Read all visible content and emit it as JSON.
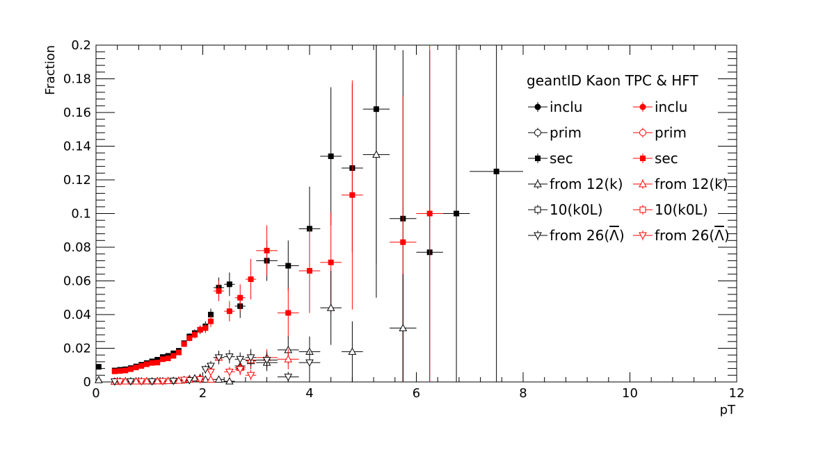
{
  "chart_data": {
    "type": "scatter",
    "xlabel": "pT",
    "ylabel": "Fraction",
    "xlim": [
      0,
      12
    ],
    "ylim": [
      0,
      0.2
    ],
    "x_ticks": [
      0,
      2,
      4,
      6,
      8,
      10,
      12
    ],
    "x_tick_labels": [
      "0",
      "2",
      "4",
      "6",
      "8",
      "10",
      "12"
    ],
    "y_ticks": [
      0,
      0.02,
      0.04,
      0.06,
      0.08,
      0.1,
      0.12,
      0.14,
      0.16,
      0.18,
      0.2
    ],
    "y_tick_labels": [
      "0",
      "0.02",
      "0.04",
      "0.06",
      "0.08",
      "0.1",
      "0.12",
      "0.14",
      "0.16",
      "0.18",
      "0.2"
    ],
    "grid": false,
    "legend_title": "geantID Kaon TPC & HFT",
    "legend_placement": "top-right",
    "legend": [
      {
        "left_label": "inclu",
        "right_label": "inclu",
        "marker": "circle-filled"
      },
      {
        "left_label": "prim",
        "right_label": "prim",
        "marker": "circle-open"
      },
      {
        "left_label": "sec",
        "right_label": "sec",
        "marker": "square-filled"
      },
      {
        "left_label": "from 12(k)",
        "right_label": "from 12(k)",
        "marker": "triangle-up-open"
      },
      {
        "left_label": "10(k0L)",
        "right_label": "10(k0L)",
        "marker": "square-open"
      },
      {
        "left_label": "from 26(",
        "left_label_sym": "Λ",
        "left_label_close": ")",
        "right_label": "from 26(",
        "right_label_sym": "Λ",
        "right_label_close": ")",
        "marker": "triangle-down-open"
      }
    ],
    "colors": {
      "black": "#000000",
      "red": "#ff0000"
    },
    "series": [
      {
        "color": "#000000",
        "marker": "square-filled",
        "points": [
          {
            "x": 0.05,
            "y": 0.009,
            "xerr": 0.05,
            "yerr": 0.0006
          },
          {
            "x": 0.35,
            "y": 0.0068,
            "xerr": 0.05,
            "yerr": 0.0004
          },
          {
            "x": 0.45,
            "y": 0.0072,
            "xerr": 0.05,
            "yerr": 0.0004
          },
          {
            "x": 0.55,
            "y": 0.0075,
            "xerr": 0.05,
            "yerr": 0.0004
          },
          {
            "x": 0.65,
            "y": 0.0082,
            "xerr": 0.05,
            "yerr": 0.0005
          },
          {
            "x": 0.75,
            "y": 0.0092,
            "xerr": 0.05,
            "yerr": 0.0005
          },
          {
            "x": 0.85,
            "y": 0.0102,
            "xerr": 0.05,
            "yerr": 0.0006
          },
          {
            "x": 0.95,
            "y": 0.0112,
            "xerr": 0.05,
            "yerr": 0.0006
          },
          {
            "x": 1.05,
            "y": 0.0122,
            "xerr": 0.05,
            "yerr": 0.0007
          },
          {
            "x": 1.15,
            "y": 0.0132,
            "xerr": 0.05,
            "yerr": 0.0008
          },
          {
            "x": 1.25,
            "y": 0.0148,
            "xerr": 0.05,
            "yerr": 0.0009
          },
          {
            "x": 1.35,
            "y": 0.0155,
            "xerr": 0.05,
            "yerr": 0.001
          },
          {
            "x": 1.45,
            "y": 0.017,
            "xerr": 0.05,
            "yerr": 0.0011
          },
          {
            "x": 1.55,
            "y": 0.0185,
            "xerr": 0.05,
            "yerr": 0.0013
          },
          {
            "x": 1.65,
            "y": 0.023,
            "xerr": 0.05,
            "yerr": 0.0016
          },
          {
            "x": 1.75,
            "y": 0.027,
            "xerr": 0.05,
            "yerr": 0.0019
          },
          {
            "x": 1.85,
            "y": 0.029,
            "xerr": 0.05,
            "yerr": 0.0022
          },
          {
            "x": 1.95,
            "y": 0.031,
            "xerr": 0.05,
            "yerr": 0.0025
          },
          {
            "x": 2.05,
            "y": 0.033,
            "xerr": 0.05,
            "yerr": 0.003
          },
          {
            "x": 2.15,
            "y": 0.04,
            "xerr": 0.05,
            "yerr": 0.0035
          },
          {
            "x": 2.3,
            "y": 0.056,
            "xerr": 0.1,
            "yerr": 0.006
          },
          {
            "x": 2.5,
            "y": 0.058,
            "xerr": 0.1,
            "yerr": 0.007
          },
          {
            "x": 2.7,
            "y": 0.045,
            "xerr": 0.1,
            "yerr": 0.007
          },
          {
            "x": 3.2,
            "y": 0.072,
            "xerr": 0.2,
            "yerr": 0.012
          },
          {
            "x": 3.6,
            "y": 0.069,
            "xerr": 0.2,
            "yerr": 0.015
          },
          {
            "x": 4.0,
            "y": 0.091,
            "xerr": 0.2,
            "yerr": 0.025
          },
          {
            "x": 4.4,
            "y": 0.134,
            "xerr": 0.2,
            "yerr": 0.041
          },
          {
            "x": 4.8,
            "y": 0.127,
            "xerr": 0.2,
            "yerr": 0.05
          },
          {
            "x": 5.25,
            "y": 0.162,
            "xerr": 0.25,
            "yerr": 0.092
          },
          {
            "x": 5.75,
            "y": 0.097,
            "xerr": 0.25,
            "yerr": 0.1
          },
          {
            "x": 6.25,
            "y": 0.077,
            "xerr": 0.25,
            "yerr": 0.12
          },
          {
            "x": 6.75,
            "y": 0.1,
            "xerr": 0.25,
            "yerr": 0.15
          },
          {
            "x": 7.5,
            "y": 0.125,
            "xerr": 0.5,
            "yerr": 0.2
          }
        ]
      },
      {
        "color": "#ff0000",
        "marker": "square-filled",
        "points": [
          {
            "x": 0.35,
            "y": 0.0063,
            "xerr": 0.05,
            "yerr": 0.0004
          },
          {
            "x": 0.45,
            "y": 0.0065,
            "xerr": 0.05,
            "yerr": 0.0004
          },
          {
            "x": 0.55,
            "y": 0.0068,
            "xerr": 0.05,
            "yerr": 0.0004
          },
          {
            "x": 0.65,
            "y": 0.0076,
            "xerr": 0.05,
            "yerr": 0.0005
          },
          {
            "x": 0.75,
            "y": 0.0086,
            "xerr": 0.05,
            "yerr": 0.0005
          },
          {
            "x": 0.85,
            "y": 0.0095,
            "xerr": 0.05,
            "yerr": 0.0006
          },
          {
            "x": 0.95,
            "y": 0.0105,
            "xerr": 0.05,
            "yerr": 0.0006
          },
          {
            "x": 1.05,
            "y": 0.0113,
            "xerr": 0.05,
            "yerr": 0.0007
          },
          {
            "x": 1.15,
            "y": 0.0115,
            "xerr": 0.05,
            "yerr": 0.0008
          },
          {
            "x": 1.25,
            "y": 0.0135,
            "xerr": 0.05,
            "yerr": 0.0009
          },
          {
            "x": 1.35,
            "y": 0.014,
            "xerr": 0.05,
            "yerr": 0.001
          },
          {
            "x": 1.45,
            "y": 0.0155,
            "xerr": 0.05,
            "yerr": 0.0011
          },
          {
            "x": 1.55,
            "y": 0.0175,
            "xerr": 0.05,
            "yerr": 0.0013
          },
          {
            "x": 1.65,
            "y": 0.0225,
            "xerr": 0.05,
            "yerr": 0.0016
          },
          {
            "x": 1.75,
            "y": 0.026,
            "xerr": 0.05,
            "yerr": 0.0019
          },
          {
            "x": 1.85,
            "y": 0.028,
            "xerr": 0.05,
            "yerr": 0.0022
          },
          {
            "x": 1.95,
            "y": 0.031,
            "xerr": 0.05,
            "yerr": 0.0025
          },
          {
            "x": 2.05,
            "y": 0.032,
            "xerr": 0.05,
            "yerr": 0.003
          },
          {
            "x": 2.15,
            "y": 0.036,
            "xerr": 0.05,
            "yerr": 0.0035
          },
          {
            "x": 2.3,
            "y": 0.054,
            "xerr": 0.1,
            "yerr": 0.006
          },
          {
            "x": 2.5,
            "y": 0.042,
            "xerr": 0.1,
            "yerr": 0.006
          },
          {
            "x": 2.7,
            "y": 0.05,
            "xerr": 0.1,
            "yerr": 0.008
          },
          {
            "x": 2.9,
            "y": 0.061,
            "xerr": 0.1,
            "yerr": 0.012
          },
          {
            "x": 3.2,
            "y": 0.078,
            "xerr": 0.2,
            "yerr": 0.015
          },
          {
            "x": 3.6,
            "y": 0.041,
            "xerr": 0.2,
            "yerr": 0.015
          },
          {
            "x": 4.0,
            "y": 0.066,
            "xerr": 0.2,
            "yerr": 0.025
          },
          {
            "x": 4.4,
            "y": 0.071,
            "xerr": 0.2,
            "yerr": 0.03
          },
          {
            "x": 4.8,
            "y": 0.111,
            "xerr": 0.2,
            "yerr": 0.068
          },
          {
            "x": 5.75,
            "y": 0.083,
            "xerr": 0.25,
            "yerr": 0.087
          },
          {
            "x": 6.25,
            "y": 0.1,
            "xerr": 0.25,
            "yerr": 0.15
          }
        ]
      },
      {
        "color": "#000000",
        "marker": "triangle-up-open",
        "points": [
          {
            "x": 0.05,
            "y": 0.0012,
            "xerr": 0.05,
            "yerr": 0.0003
          },
          {
            "x": 0.35,
            "y": 0.0003,
            "xerr": 0.05,
            "yerr": 0.0002
          },
          {
            "x": 0.45,
            "y": 0.0004,
            "xerr": 0.05,
            "yerr": 0.0002
          },
          {
            "x": 0.55,
            "y": 0.0005,
            "xerr": 0.05,
            "yerr": 0.0002
          },
          {
            "x": 0.65,
            "y": 0.0004,
            "xerr": 0.05,
            "yerr": 0.0002
          },
          {
            "x": 0.75,
            "y": 0.0005,
            "xerr": 0.05,
            "yerr": 0.0002
          },
          {
            "x": 0.85,
            "y": 0.0004,
            "xerr": 0.05,
            "yerr": 0.0002
          },
          {
            "x": 0.95,
            "y": 0.0005,
            "xerr": 0.05,
            "yerr": 0.0002
          },
          {
            "x": 1.05,
            "y": 0.0004,
            "xerr": 0.05,
            "yerr": 0.0002
          },
          {
            "x": 1.15,
            "y": 0.0006,
            "xerr": 0.05,
            "yerr": 0.0002
          },
          {
            "x": 1.25,
            "y": 0.0005,
            "xerr": 0.05,
            "yerr": 0.0002
          },
          {
            "x": 1.35,
            "y": 0.0006,
            "xerr": 0.05,
            "yerr": 0.0003
          },
          {
            "x": 1.45,
            "y": 0.0007,
            "xerr": 0.05,
            "yerr": 0.0003
          },
          {
            "x": 1.55,
            "y": 0.0009,
            "xerr": 0.05,
            "yerr": 0.0004
          },
          {
            "x": 1.65,
            "y": 0.0012,
            "xerr": 0.05,
            "yerr": 0.0005
          },
          {
            "x": 1.75,
            "y": 0.0018,
            "xerr": 0.05,
            "yerr": 0.0007
          },
          {
            "x": 1.85,
            "y": 0.0022,
            "xerr": 0.05,
            "yerr": 0.0009
          },
          {
            "x": 1.95,
            "y": 0.0025,
            "xerr": 0.05,
            "yerr": 0.001
          },
          {
            "x": 2.05,
            "y": 0.0015,
            "xerr": 0.05,
            "yerr": 0.001
          },
          {
            "x": 2.3,
            "y": 0.0015,
            "xerr": 0.1,
            "yerr": 0.0015
          },
          {
            "x": 2.5,
            "y": 0.0004,
            "xerr": 0.1,
            "yerr": 0.0015
          },
          {
            "x": 2.7,
            "y": 0.0095,
            "xerr": 0.1,
            "yerr": 0.004
          },
          {
            "x": 2.9,
            "y": 0.0125,
            "xerr": 0.1,
            "yerr": 0.005
          },
          {
            "x": 3.2,
            "y": 0.0115,
            "xerr": 0.2,
            "yerr": 0.005
          },
          {
            "x": 3.6,
            "y": 0.019,
            "xerr": 0.2,
            "yerr": 0.008
          },
          {
            "x": 4.0,
            "y": 0.018,
            "xerr": 0.2,
            "yerr": 0.009
          },
          {
            "x": 4.4,
            "y": 0.044,
            "xerr": 0.2,
            "yerr": 0.022
          },
          {
            "x": 4.8,
            "y": 0.018,
            "xerr": 0.2,
            "yerr": 0.018
          },
          {
            "x": 5.25,
            "y": 0.135,
            "xerr": 0.25,
            "yerr": 0.085
          },
          {
            "x": 5.75,
            "y": 0.032,
            "xerr": 0.25,
            "yerr": 0.032
          }
        ]
      },
      {
        "color": "#ff0000",
        "marker": "triangle-up-open",
        "points": [
          {
            "x": 0.35,
            "y": 0.0003,
            "xerr": 0.05,
            "yerr": 0.0002
          },
          {
            "x": 0.55,
            "y": 0.0004,
            "xerr": 0.05,
            "yerr": 0.0002
          },
          {
            "x": 0.75,
            "y": 0.0004,
            "xerr": 0.05,
            "yerr": 0.0002
          },
          {
            "x": 0.95,
            "y": 0.0005,
            "xerr": 0.05,
            "yerr": 0.0002
          },
          {
            "x": 1.15,
            "y": 0.0005,
            "xerr": 0.05,
            "yerr": 0.0002
          },
          {
            "x": 1.35,
            "y": 0.0006,
            "xerr": 0.05,
            "yerr": 0.0003
          },
          {
            "x": 1.55,
            "y": 0.0008,
            "xerr": 0.05,
            "yerr": 0.0004
          },
          {
            "x": 1.75,
            "y": 0.0015,
            "xerr": 0.05,
            "yerr": 0.0007
          },
          {
            "x": 1.95,
            "y": 0.002,
            "xerr": 0.05,
            "yerr": 0.001
          },
          {
            "x": 2.15,
            "y": 0.0015,
            "xerr": 0.05,
            "yerr": 0.0012
          },
          {
            "x": 2.3,
            "y": 0.0145,
            "xerr": 0.1,
            "yerr": 0.004
          },
          {
            "x": 2.7,
            "y": 0.0085,
            "xerr": 0.1,
            "yerr": 0.004
          },
          {
            "x": 2.9,
            "y": 0.013,
            "xerr": 0.1,
            "yerr": 0.005
          },
          {
            "x": 3.2,
            "y": 0.0145,
            "xerr": 0.2,
            "yerr": 0.005
          },
          {
            "x": 3.6,
            "y": 0.0135,
            "xerr": 0.2,
            "yerr": 0.006
          }
        ]
      },
      {
        "color": "#000000",
        "marker": "triangle-down-open",
        "points": [
          {
            "x": 0.35,
            "y": 0.0002,
            "xerr": 0.05,
            "yerr": 0.0002
          },
          {
            "x": 0.65,
            "y": 0.0003,
            "xerr": 0.05,
            "yerr": 0.0002
          },
          {
            "x": 1.05,
            "y": 0.0003,
            "xerr": 0.05,
            "yerr": 0.0002
          },
          {
            "x": 1.45,
            "y": 0.0006,
            "xerr": 0.05,
            "yerr": 0.0003
          },
          {
            "x": 1.75,
            "y": 0.001,
            "xerr": 0.05,
            "yerr": 0.0005
          },
          {
            "x": 2.05,
            "y": 0.0075,
            "xerr": 0.05,
            "yerr": 0.0025
          },
          {
            "x": 2.15,
            "y": 0.0095,
            "xerr": 0.05,
            "yerr": 0.003
          },
          {
            "x": 2.3,
            "y": 0.0145,
            "xerr": 0.1,
            "yerr": 0.004
          },
          {
            "x": 2.5,
            "y": 0.015,
            "xerr": 0.1,
            "yerr": 0.004
          },
          {
            "x": 2.7,
            "y": 0.0135,
            "xerr": 0.1,
            "yerr": 0.004
          },
          {
            "x": 2.9,
            "y": 0.0145,
            "xerr": 0.1,
            "yerr": 0.005
          },
          {
            "x": 3.2,
            "y": 0.013,
            "xerr": 0.2,
            "yerr": 0.005
          },
          {
            "x": 3.6,
            "y": 0.003,
            "xerr": 0.2,
            "yerr": 0.003
          },
          {
            "x": 4.0,
            "y": 0.0115,
            "xerr": 0.2,
            "yerr": 0.007
          }
        ]
      },
      {
        "color": "#ff0000",
        "marker": "triangle-down-open",
        "points": [
          {
            "x": 0.45,
            "y": 0.0002,
            "xerr": 0.05,
            "yerr": 0.0002
          },
          {
            "x": 0.85,
            "y": 0.0003,
            "xerr": 0.05,
            "yerr": 0.0002
          },
          {
            "x": 1.25,
            "y": 0.0004,
            "xerr": 0.05,
            "yerr": 0.0002
          },
          {
            "x": 1.65,
            "y": 0.0012,
            "xerr": 0.05,
            "yerr": 0.0005
          },
          {
            "x": 1.95,
            "y": 0.0015,
            "xerr": 0.05,
            "yerr": 0.0008
          },
          {
            "x": 2.15,
            "y": 0.006,
            "xerr": 0.05,
            "yerr": 0.0025
          },
          {
            "x": 2.5,
            "y": 0.006,
            "xerr": 0.1,
            "yerr": 0.003
          },
          {
            "x": 2.7,
            "y": 0.0075,
            "xerr": 0.1,
            "yerr": 0.0035
          },
          {
            "x": 2.9,
            "y": 0.004,
            "xerr": 0.1,
            "yerr": 0.003
          }
        ]
      }
    ]
  }
}
